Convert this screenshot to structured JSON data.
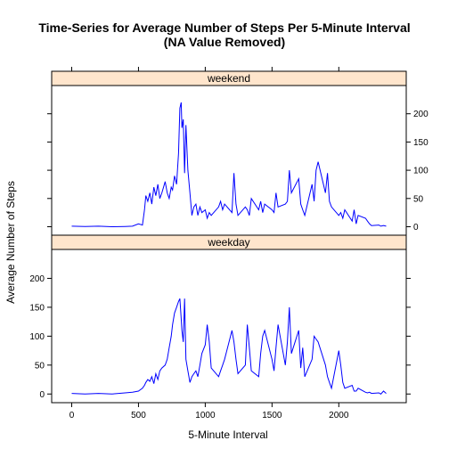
{
  "chart_data": {
    "type": "line",
    "title": "Time-Series for Average Number of Steps Per 5-Minute Interval",
    "subtitle": "(NA Value Removed)",
    "xlabel": "5-Minute Interval",
    "ylabel": "Average Number of Steps",
    "xlim": [
      -150,
      2505
    ],
    "ylim": [
      -15,
      250
    ],
    "x_ticks": [
      0,
      500,
      1000,
      1500,
      2000
    ],
    "y_ticks": [
      0,
      50,
      100,
      150,
      200
    ],
    "line_color": "#0000ff",
    "strip_color": "#ffe5cc",
    "panels": [
      {
        "name": "weekend",
        "y_axis_side": "right",
        "x": [
          0,
          100,
          200,
          300,
          400,
          455,
          500,
          530,
          545,
          555,
          570,
          585,
          600,
          615,
          630,
          645,
          660,
          675,
          700,
          715,
          730,
          745,
          755,
          770,
          785,
          800,
          810,
          820,
          825,
          835,
          845,
          855,
          870,
          885,
          900,
          915,
          930,
          945,
          960,
          975,
          1000,
          1015,
          1030,
          1045,
          1100,
          1115,
          1130,
          1145,
          1200,
          1215,
          1230,
          1245,
          1300,
          1315,
          1330,
          1345,
          1400,
          1415,
          1430,
          1445,
          1500,
          1515,
          1530,
          1545,
          1600,
          1615,
          1630,
          1645,
          1700,
          1715,
          1730,
          1745,
          1800,
          1815,
          1830,
          1845,
          1900,
          1915,
          1930,
          1945,
          2000,
          2015,
          2030,
          2045,
          2100,
          2115,
          2130,
          2145,
          2200,
          2215,
          2230,
          2245,
          2300,
          2315,
          2335,
          2355
        ],
        "y": [
          1,
          0.5,
          1,
          0,
          0.5,
          1,
          5,
          3,
          30,
          55,
          45,
          60,
          40,
          70,
          55,
          75,
          50,
          60,
          80,
          60,
          50,
          70,
          65,
          90,
          75,
          130,
          210,
          220,
          175,
          190,
          95,
          180,
          100,
          60,
          20,
          35,
          40,
          20,
          35,
          25,
          30,
          15,
          25,
          20,
          35,
          45,
          30,
          40,
          25,
          95,
          40,
          20,
          35,
          30,
          20,
          50,
          30,
          45,
          25,
          40,
          30,
          25,
          60,
          35,
          40,
          45,
          100,
          60,
          85,
          40,
          30,
          20,
          75,
          45,
          100,
          115,
          60,
          95,
          45,
          35,
          20,
          25,
          15,
          30,
          10,
          30,
          5,
          20,
          15,
          10,
          5,
          2,
          3,
          1,
          2,
          1
        ]
      },
      {
        "name": "weekday",
        "y_axis_side": "left",
        "x": [
          0,
          100,
          200,
          300,
          400,
          455,
          500,
          530,
          545,
          555,
          570,
          585,
          600,
          615,
          630,
          645,
          660,
          675,
          700,
          715,
          730,
          745,
          755,
          770,
          785,
          800,
          810,
          820,
          825,
          835,
          845,
          855,
          870,
          885,
          900,
          915,
          930,
          945,
          960,
          975,
          1000,
          1015,
          1030,
          1045,
          1100,
          1115,
          1130,
          1145,
          1200,
          1215,
          1230,
          1245,
          1300,
          1315,
          1330,
          1345,
          1400,
          1415,
          1430,
          1445,
          1500,
          1515,
          1530,
          1545,
          1600,
          1615,
          1630,
          1645,
          1700,
          1715,
          1730,
          1745,
          1800,
          1815,
          1830,
          1845,
          1900,
          1915,
          1930,
          1945,
          2000,
          2015,
          2030,
          2045,
          2100,
          2115,
          2130,
          2145,
          2200,
          2215,
          2230,
          2245,
          2300,
          2315,
          2335,
          2355
        ],
        "y": [
          1,
          0,
          1,
          0,
          2,
          3,
          5,
          10,
          15,
          20,
          25,
          22,
          30,
          18,
          35,
          25,
          40,
          45,
          50,
          60,
          80,
          100,
          120,
          140,
          150,
          160,
          165,
          130,
          110,
          90,
          165,
          60,
          40,
          20,
          30,
          35,
          40,
          30,
          50,
          70,
          85,
          120,
          90,
          45,
          30,
          40,
          50,
          60,
          110,
          90,
          60,
          35,
          50,
          120,
          80,
          40,
          30,
          70,
          100,
          110,
          60,
          40,
          80,
          120,
          50,
          90,
          150,
          70,
          110,
          45,
          80,
          30,
          60,
          100,
          95,
          90,
          50,
          30,
          20,
          10,
          75,
          50,
          20,
          10,
          15,
          5,
          5,
          10,
          3,
          2,
          3,
          1,
          2,
          0,
          5,
          1
        ]
      }
    ]
  }
}
